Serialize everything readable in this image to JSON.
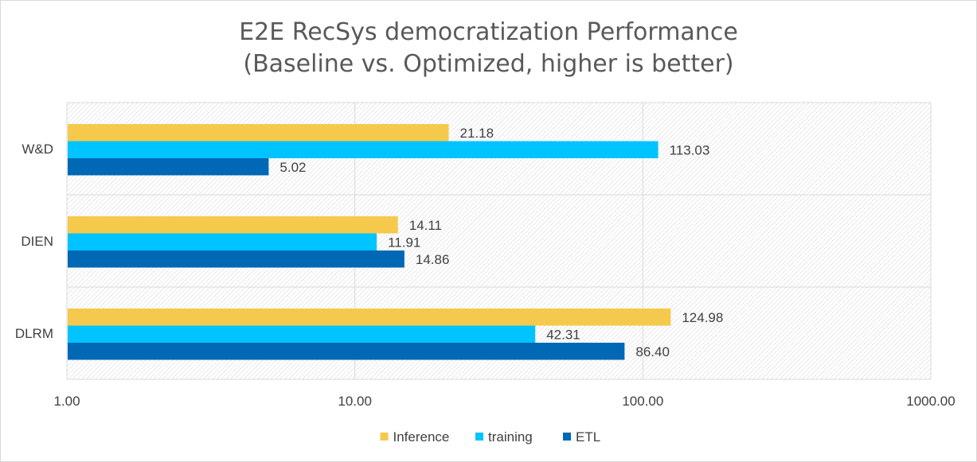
{
  "chart_data": {
    "type": "bar",
    "orientation": "horizontal",
    "title": "E2E RecSys democratization Performance",
    "subtitle": "(Baseline vs. Optimized, higher is better)",
    "xscale": "log",
    "xlim": [
      1,
      1000
    ],
    "xticks": [
      "1.00",
      "10.00",
      "100.00",
      "1000.00"
    ],
    "xtick_values": [
      1,
      10,
      100,
      1000
    ],
    "categories": [
      "W&D",
      "DIEN",
      "DLRM"
    ],
    "series": [
      {
        "name": "Inference",
        "color": "#f5c94b",
        "values": [
          21.18,
          14.11,
          124.98
        ],
        "labels": [
          "21.18",
          "14.11",
          "124.98"
        ]
      },
      {
        "name": "training",
        "color": "#00c4ff",
        "values": [
          113.03,
          11.91,
          42.31
        ],
        "labels": [
          "113.03",
          "11.91",
          "42.31"
        ]
      },
      {
        "name": "ETL",
        "color": "#0068b5",
        "values": [
          5.02,
          14.86,
          86.4
        ],
        "labels": [
          "5.02",
          "14.86",
          "86.40"
        ]
      }
    ],
    "grid": true,
    "legend_position": "bottom",
    "plot_background": "hatched"
  }
}
